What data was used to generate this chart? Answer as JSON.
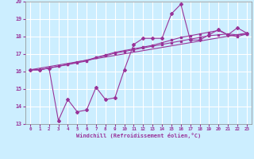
{
  "xlabel": "Windchill (Refroidissement éolien,°C)",
  "background_color": "#cceeff",
  "grid_color": "#ffffff",
  "line_color": "#993399",
  "xlim": [
    -0.5,
    23.5
  ],
  "ylim": [
    13,
    20
  ],
  "yticks": [
    13,
    14,
    15,
    16,
    17,
    18,
    19,
    20
  ],
  "xticks": [
    0,
    1,
    2,
    3,
    4,
    5,
    6,
    7,
    8,
    9,
    10,
    11,
    12,
    13,
    14,
    15,
    16,
    17,
    18,
    19,
    20,
    21,
    22,
    23
  ],
  "series1_x": [
    0,
    1,
    2,
    3,
    4,
    5,
    6,
    7,
    8,
    9,
    10,
    11,
    12,
    13,
    14,
    15,
    16,
    17,
    18,
    19,
    20,
    21,
    22,
    23
  ],
  "series1_y": [
    16.1,
    16.1,
    16.2,
    16.3,
    16.4,
    16.5,
    16.6,
    16.8,
    16.9,
    17.05,
    17.15,
    17.25,
    17.35,
    17.45,
    17.55,
    17.65,
    17.75,
    17.85,
    17.95,
    18.05,
    18.1,
    18.15,
    18.1,
    18.15
  ],
  "series2_x": [
    0,
    1,
    2,
    3,
    4,
    5,
    6,
    7,
    8,
    9,
    10,
    11,
    12,
    13,
    14,
    15,
    16,
    17,
    18,
    19,
    20,
    21,
    22,
    23
  ],
  "series2_y": [
    16.1,
    16.1,
    16.2,
    16.3,
    16.4,
    16.55,
    16.65,
    16.8,
    16.95,
    17.1,
    17.2,
    17.3,
    17.4,
    17.5,
    17.65,
    17.8,
    17.95,
    18.05,
    18.15,
    18.25,
    18.35,
    18.1,
    18.0,
    18.15
  ],
  "series3_x": [
    0,
    1,
    2,
    3,
    4,
    5,
    6,
    7,
    8,
    9,
    10,
    11,
    12,
    13,
    14,
    15,
    16,
    17,
    18,
    19,
    20,
    21,
    22,
    23
  ],
  "series3_y": [
    16.1,
    16.1,
    16.2,
    13.2,
    14.4,
    13.7,
    13.8,
    15.1,
    14.4,
    14.5,
    16.1,
    17.55,
    17.9,
    17.9,
    17.9,
    19.3,
    19.85,
    17.8,
    17.8,
    18.1,
    18.4,
    18.1,
    18.5,
    18.2
  ],
  "series4_x": [
    0,
    23
  ],
  "series4_y": [
    16.1,
    18.2
  ]
}
